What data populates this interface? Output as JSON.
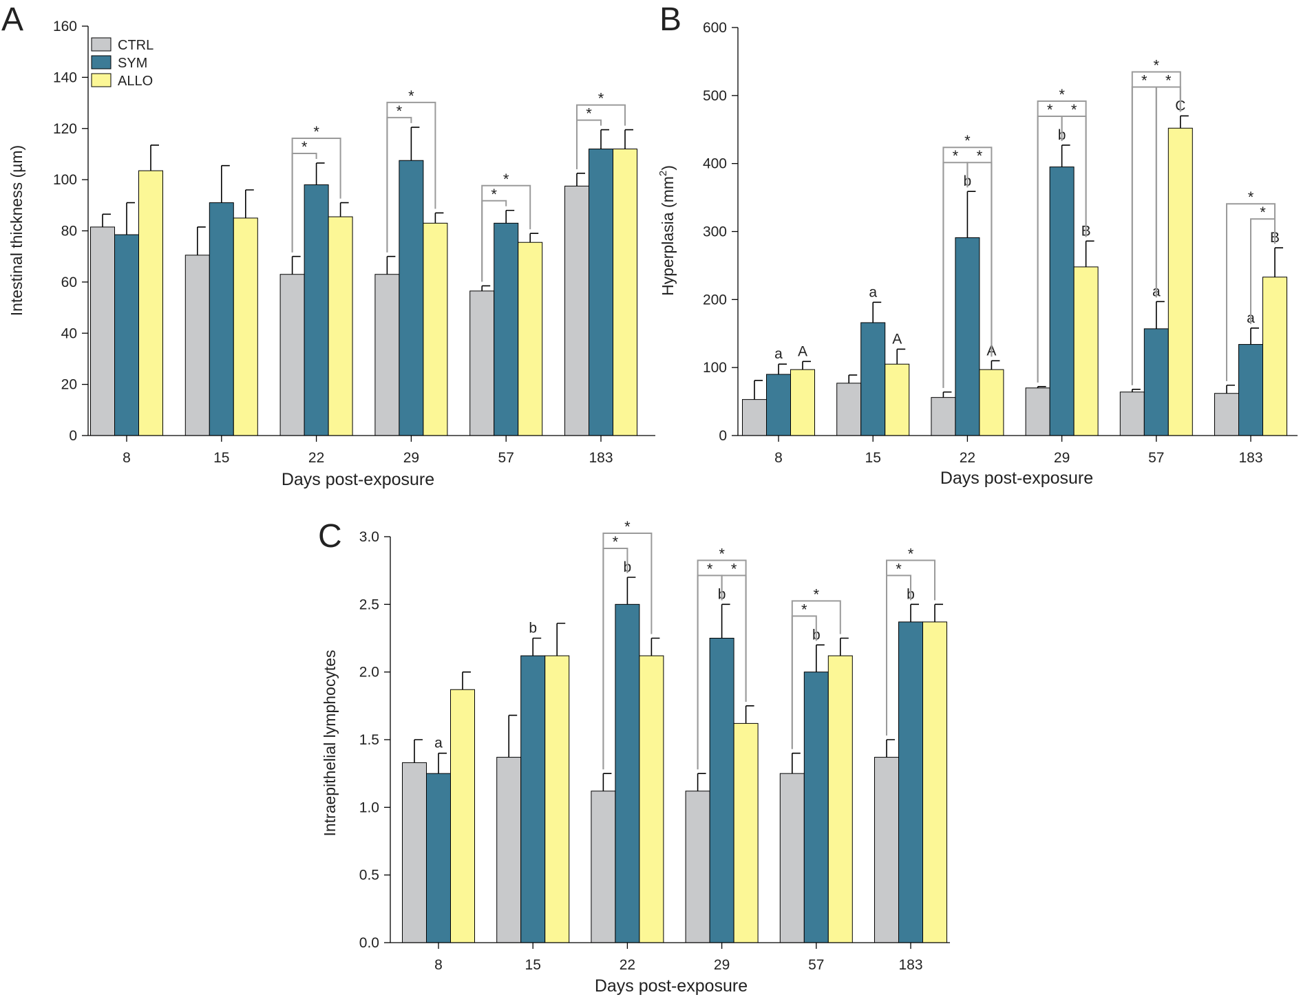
{
  "colors": {
    "CTRL": "#c8c9cb",
    "SYM": "#3c7b96",
    "ALLO": "#fcf796"
  },
  "legend": [
    {
      "key": "CTRL",
      "label": "CTRL"
    },
    {
      "key": "SYM",
      "label": "SYM"
    },
    {
      "key": "ALLO",
      "label": "ALLO"
    }
  ],
  "chart_data": [
    {
      "panel": "A",
      "type": "bar",
      "title": "",
      "xlabel": "Days post-exposure",
      "ylabel": "Intestinal thickness (µm)",
      "ylim": [
        0,
        160
      ],
      "yticks": [
        "0",
        "20",
        "40",
        "60",
        "80",
        "100",
        "120",
        "140",
        "160"
      ],
      "categories": [
        "8",
        "15",
        "22",
        "29",
        "57",
        "183"
      ],
      "series": [
        {
          "name": "CTRL",
          "values": [
            81.5,
            70.5,
            63,
            63,
            56.5,
            97.5
          ],
          "errors": [
            5,
            11,
            7,
            7,
            2,
            5
          ]
        },
        {
          "name": "SYM",
          "values": [
            78.5,
            91,
            98,
            107.5,
            83,
            112
          ],
          "errors": [
            12.5,
            14.5,
            8.5,
            13,
            5,
            7.5
          ]
        },
        {
          "name": "ALLO",
          "values": [
            103.5,
            85,
            85.5,
            83,
            75.5,
            112
          ],
          "errors": [
            10,
            11,
            5.5,
            4,
            3.5,
            7.5
          ]
        }
      ],
      "letters": [],
      "brackets": [
        {
          "category": 2,
          "from": 0,
          "to": 1,
          "level": 1,
          "label": "*"
        },
        {
          "category": 2,
          "from": 0,
          "to": 2,
          "level": 2,
          "label": "*"
        },
        {
          "category": 3,
          "from": 0,
          "to": 1,
          "level": 1,
          "label": "*"
        },
        {
          "category": 3,
          "from": 0,
          "to": 2,
          "level": 2,
          "label": "*"
        },
        {
          "category": 4,
          "from": 0,
          "to": 1,
          "level": 1,
          "label": "*"
        },
        {
          "category": 4,
          "from": 0,
          "to": 2,
          "level": 2,
          "label": "*"
        },
        {
          "category": 5,
          "from": 0,
          "to": 1,
          "level": 1,
          "label": "*"
        },
        {
          "category": 5,
          "from": 0,
          "to": 2,
          "level": 2,
          "label": "*"
        }
      ]
    },
    {
      "panel": "B",
      "type": "bar",
      "title": "",
      "xlabel": "Days post-exposure",
      "ylabel": "Hyperplasia (mm",
      "ylabel_sup": "2",
      "ylabel_end": ")",
      "ylim": [
        0,
        600
      ],
      "yticks": [
        "0",
        "100",
        "200",
        "300",
        "400",
        "500",
        "600"
      ],
      "categories": [
        "8",
        "15",
        "22",
        "29",
        "57",
        "183"
      ],
      "series": [
        {
          "name": "CTRL",
          "values": [
            53,
            77,
            56,
            70,
            64,
            62
          ],
          "errors": [
            28,
            12,
            8,
            2,
            4,
            12
          ]
        },
        {
          "name": "SYM",
          "values": [
            90,
            166,
            291,
            395,
            157,
            134
          ],
          "errors": [
            15,
            30,
            68,
            32,
            40,
            24
          ]
        },
        {
          "name": "ALLO",
          "values": [
            97,
            105,
            97,
            248,
            452,
            233
          ],
          "errors": [
            12,
            22,
            13,
            38,
            18,
            43
          ]
        }
      ],
      "letters": [
        {
          "category": 0,
          "series": 1,
          "text": "a"
        },
        {
          "category": 0,
          "series": 2,
          "text": "A"
        },
        {
          "category": 1,
          "series": 1,
          "text": "a"
        },
        {
          "category": 1,
          "series": 2,
          "text": "A"
        },
        {
          "category": 2,
          "series": 1,
          "text": "b"
        },
        {
          "category": 2,
          "series": 2,
          "text": "A"
        },
        {
          "category": 3,
          "series": 1,
          "text": "b"
        },
        {
          "category": 3,
          "series": 2,
          "text": "B"
        },
        {
          "category": 4,
          "series": 1,
          "text": "a"
        },
        {
          "category": 4,
          "series": 2,
          "text": "C"
        },
        {
          "category": 5,
          "series": 1,
          "text": "a"
        },
        {
          "category": 5,
          "series": 2,
          "text": "B"
        }
      ],
      "brackets": [
        {
          "category": 2,
          "from": 0,
          "to": 1,
          "level": 1,
          "label": "*"
        },
        {
          "category": 2,
          "from": 1,
          "to": 2,
          "level": 1,
          "label": "*"
        },
        {
          "category": 2,
          "from": 0,
          "to": 2,
          "level": 2,
          "label": "*"
        },
        {
          "category": 3,
          "from": 0,
          "to": 1,
          "level": 1,
          "label": "*"
        },
        {
          "category": 3,
          "from": 1,
          "to": 2,
          "level": 1,
          "label": "*"
        },
        {
          "category": 3,
          "from": 0,
          "to": 2,
          "level": 2,
          "label": "*"
        },
        {
          "category": 4,
          "from": 0,
          "to": 1,
          "level": 1,
          "label": "*"
        },
        {
          "category": 4,
          "from": 1,
          "to": 2,
          "level": 1,
          "label": "*"
        },
        {
          "category": 4,
          "from": 0,
          "to": 2,
          "level": 2,
          "label": "*"
        },
        {
          "category": 5,
          "from": 1,
          "to": 2,
          "level": 1,
          "label": "*"
        },
        {
          "category": 5,
          "from": 0,
          "to": 2,
          "level": 2,
          "label": "*"
        }
      ]
    },
    {
      "panel": "C",
      "type": "bar",
      "title": "",
      "xlabel": "Days post-exposure",
      "ylabel": "Intraepithelial lymphocytes",
      "ylim": [
        0,
        3
      ],
      "yticks": [
        "0.0",
        "0.5",
        "1.0",
        "1.5",
        "2.0",
        "2.5",
        "3.0"
      ],
      "categories": [
        "8",
        "15",
        "22",
        "29",
        "57",
        "183"
      ],
      "series": [
        {
          "name": "CTRL",
          "values": [
            1.33,
            1.37,
            1.12,
            1.12,
            1.25,
            1.37
          ],
          "errors": [
            0.17,
            0.31,
            0.13,
            0.13,
            0.15,
            0.13
          ]
        },
        {
          "name": "SYM",
          "values": [
            1.25,
            2.12,
            2.5,
            2.25,
            2.0,
            2.37
          ],
          "errors": [
            0.15,
            0.13,
            0.2,
            0.25,
            0.2,
            0.13
          ]
        },
        {
          "name": "ALLO",
          "values": [
            1.87,
            2.12,
            2.12,
            1.62,
            2.12,
            2.37
          ],
          "errors": [
            0.13,
            0.24,
            0.13,
            0.13,
            0.13,
            0.13
          ]
        }
      ],
      "letters": [
        {
          "category": 0,
          "series": 1,
          "text": "a"
        },
        {
          "category": 1,
          "series": 1,
          "text": "b"
        },
        {
          "category": 2,
          "series": 1,
          "text": "b"
        },
        {
          "category": 3,
          "series": 1,
          "text": "b"
        },
        {
          "category": 4,
          "series": 1,
          "text": "b"
        },
        {
          "category": 5,
          "series": 1,
          "text": "b"
        }
      ],
      "brackets": [
        {
          "category": 2,
          "from": 0,
          "to": 1,
          "level": 1,
          "label": "*"
        },
        {
          "category": 2,
          "from": 0,
          "to": 2,
          "level": 2,
          "label": "*"
        },
        {
          "category": 3,
          "from": 0,
          "to": 1,
          "level": 1,
          "label": "*"
        },
        {
          "category": 3,
          "from": 1,
          "to": 2,
          "level": 1,
          "label": "*"
        },
        {
          "category": 3,
          "from": 0,
          "to": 2,
          "level": 2,
          "label": "*"
        },
        {
          "category": 4,
          "from": 0,
          "to": 1,
          "level": 1,
          "label": "*"
        },
        {
          "category": 4,
          "from": 0,
          "to": 2,
          "level": 2,
          "label": "*"
        },
        {
          "category": 5,
          "from": 0,
          "to": 1,
          "level": 1,
          "label": "*"
        },
        {
          "category": 5,
          "from": 0,
          "to": 2,
          "level": 2,
          "label": "*"
        }
      ]
    }
  ]
}
